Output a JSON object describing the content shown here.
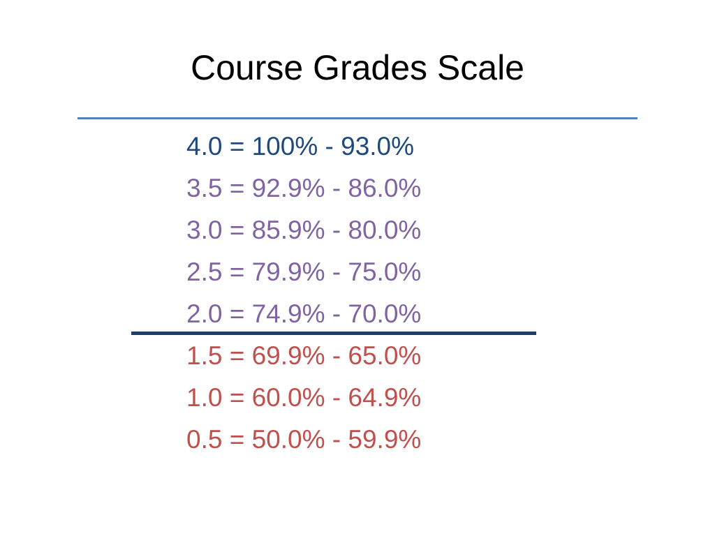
{
  "slide": {
    "title": "Course Grades Scale",
    "grades": [
      {
        "text": "4.0 = 100% - 93.0%",
        "group": "top"
      },
      {
        "text": "3.5 = 92.9% - 86.0%",
        "group": "passing"
      },
      {
        "text": "3.0 = 85.9% - 80.0%",
        "group": "passing"
      },
      {
        "text": "2.5 = 79.9% - 75.0%",
        "group": "passing"
      },
      {
        "text": "2.0 = 74.9% - 70.0%",
        "group": "passing"
      },
      {
        "text": "1.5 = 69.9% - 65.0%",
        "group": "failing"
      },
      {
        "text": "1.0 = 60.0% - 64.9%",
        "group": "failing"
      },
      {
        "text": "0.5 = 50.0% - 59.9%",
        "group": "failing"
      }
    ]
  },
  "colors": {
    "top": "#1f497d",
    "passing": "#8064a2",
    "failing": "#c0504d",
    "title_rule": "#4f81bd",
    "passing_rule": "#1f3f6b"
  }
}
